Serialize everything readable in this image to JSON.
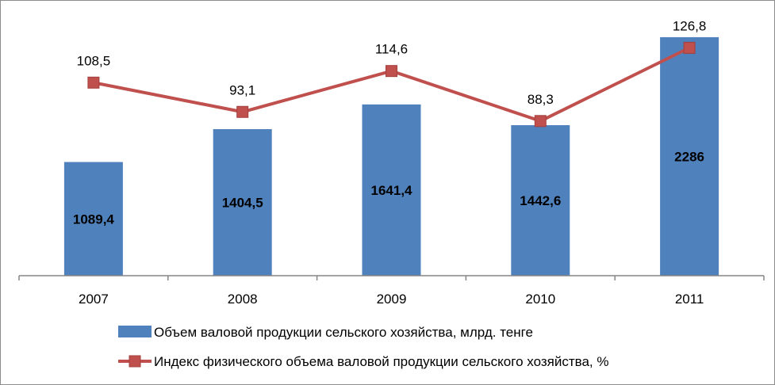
{
  "chart_data": {
    "type": "bar",
    "categories": [
      "2007",
      "2008",
      "2009",
      "2010",
      "2011"
    ],
    "series": [
      {
        "name": "Объем валовой продукции сельского хозяйства, млрд. тенге",
        "type": "bar",
        "values": [
          1089.4,
          1404.5,
          1641.4,
          1442.6,
          2286
        ],
        "labels": [
          "1089,4",
          "1404,5",
          "1641,4",
          "1442,6",
          "2286"
        ],
        "color": "#4f81bd"
      },
      {
        "name": "Индекс физического объема валовой продукции сельского хозяйства, %",
        "type": "line",
        "values": [
          108.5,
          93.1,
          114.6,
          88.3,
          126.8
        ],
        "labels": [
          "108,5",
          "93,1",
          "114,6",
          "88,3",
          "126,8"
        ],
        "color": "#c0504d"
      }
    ],
    "legend_position": "bottom",
    "grid": false
  }
}
